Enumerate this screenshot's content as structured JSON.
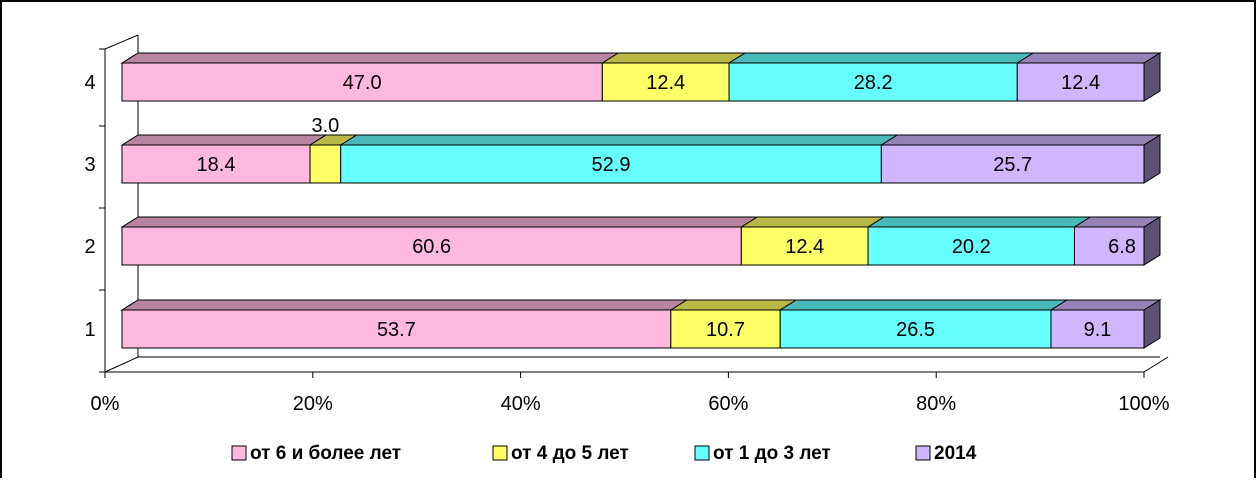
{
  "chart_data": {
    "type": "bar",
    "orientation": "horizontal",
    "stacked": "percent",
    "categories": [
      "1",
      "2",
      "3",
      "4"
    ],
    "series": [
      {
        "name": "от 6 и более лет",
        "color": "#ffb9de",
        "values": [
          53.7,
          60.6,
          18.4,
          47.0
        ]
      },
      {
        "name": "от 4 до 5 лет",
        "color": "#ffff66",
        "values": [
          10.7,
          12.4,
          3.0,
          12.4
        ]
      },
      {
        "name": "от 1 до 3 лет",
        "color": "#66ffff",
        "values": [
          26.5,
          20.2,
          52.9,
          28.2
        ]
      },
      {
        "name": "2014",
        "color": "#cfb6ff",
        "values": [
          9.1,
          6.8,
          25.7,
          12.4
        ]
      }
    ],
    "data_labels": [
      [
        "53.7",
        "10.7",
        "26.5",
        "9.1"
      ],
      [
        "60.6",
        "12.4",
        "20.2",
        "6.8"
      ],
      [
        "18.4",
        "3.0",
        "52.9",
        "25.7"
      ],
      [
        "47.0",
        "12.4",
        "28.2",
        "12.4"
      ]
    ],
    "x_ticks": [
      "0%",
      "20%",
      "40%",
      "60%",
      "80%",
      "100%"
    ],
    "xlim": [
      0,
      100
    ],
    "legend_position": "bottom",
    "grid": false,
    "three_d": true
  }
}
